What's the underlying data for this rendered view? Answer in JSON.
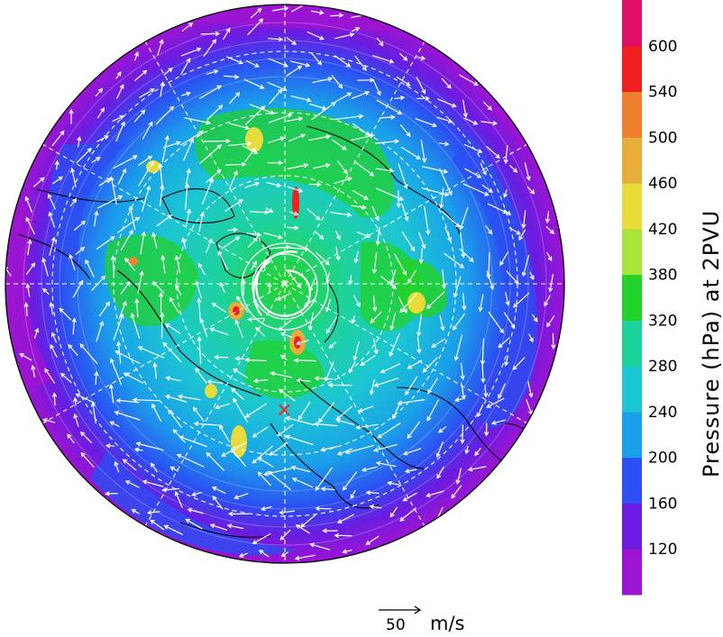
{
  "colorbar": {
    "title": "Pressure (hPa) at 2PVU",
    "levels": [
      "120",
      "160",
      "200",
      "240",
      "280",
      "320",
      "380",
      "420",
      "460",
      "500",
      "540",
      "600"
    ],
    "colors": [
      "#9b14d2",
      "#6a1de0",
      "#2b4ff2",
      "#1aa0ea",
      "#1cc6d2",
      "#1ed39a",
      "#22d22a",
      "#a8e43a",
      "#e8dc3a",
      "#e8ac3a",
      "#f0802e",
      "#f02020",
      "#e0106a"
    ]
  },
  "wind_reference": {
    "value": "50",
    "unit": "m/s"
  },
  "marker": {
    "symbol": "×",
    "color": "#ff2020"
  }
}
